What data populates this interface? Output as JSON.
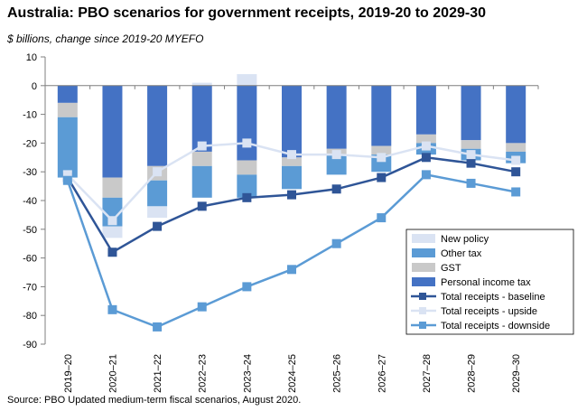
{
  "title": "Australia: PBO scenarios for government receipts, 2019-20 to 2029-30",
  "subtitle": "$ billions, change since 2019-20  MYEFO",
  "source": "Source: PBO Updated medium-term fiscal scenarios, August 2020.",
  "chart_data": {
    "type": "bar",
    "stacked": true,
    "categories": [
      "2019–20",
      "2020–21",
      "2021–22",
      "2022–23",
      "2023–24",
      "2024–25",
      "2025–26",
      "2026–27",
      "2027–28",
      "2028–29",
      "2029–30"
    ],
    "ylim": [
      -90,
      10
    ],
    "yticks": [
      10,
      0,
      -10,
      -20,
      -30,
      -40,
      -50,
      -60,
      -70,
      -80,
      -90
    ],
    "grid": false,
    "legend_position": "lower-right",
    "series": [
      {
        "name": "Personal income tax",
        "kind": "bar",
        "color": "#4472c4",
        "values": [
          -6,
          -32,
          -28,
          -23,
          -26,
          -25,
          -22,
          -21,
          -17,
          -19,
          -20
        ]
      },
      {
        "name": "GST",
        "kind": "bar",
        "color": "#c9c9c9",
        "values": [
          -5,
          -7,
          -5,
          -5,
          -5,
          -3,
          -2,
          -3,
          -3,
          -3,
          -3
        ]
      },
      {
        "name": "Other tax",
        "kind": "bar",
        "color": "#5b9bd5",
        "values": [
          -21,
          -10,
          -9,
          -11,
          -8,
          -8,
          -7,
          -6,
          -4,
          -4,
          -4
        ]
      },
      {
        "name": "New policy",
        "kind": "bar",
        "color": "#dae3f3",
        "values": [
          0,
          -4,
          -4,
          1,
          4,
          0,
          0,
          0,
          0,
          0,
          0
        ]
      },
      {
        "name": "Total receipts - baseline",
        "kind": "line",
        "color": "#2f5597",
        "values": [
          -32,
          -58,
          -49,
          -42,
          -39,
          -38,
          -36,
          -32,
          -25,
          -27,
          -30
        ]
      },
      {
        "name": "Total receipts - upside",
        "kind": "line",
        "color": "#dae3f3",
        "values": [
          -31,
          -47,
          -30,
          -21,
          -20,
          -24,
          -24,
          -25,
          -21,
          -24,
          -26
        ]
      },
      {
        "name": "Total receipts - downside",
        "kind": "line",
        "color": "#5b9bd5",
        "values": [
          -33,
          -78,
          -84,
          -77,
          -70,
          -64,
          -55,
          -46,
          -31,
          -34,
          -37
        ]
      }
    ],
    "legend_order": [
      "New policy",
      "Other tax",
      "GST",
      "Personal income tax",
      "Total receipts - baseline",
      "Total receipts - upside",
      "Total receipts - downside"
    ]
  }
}
